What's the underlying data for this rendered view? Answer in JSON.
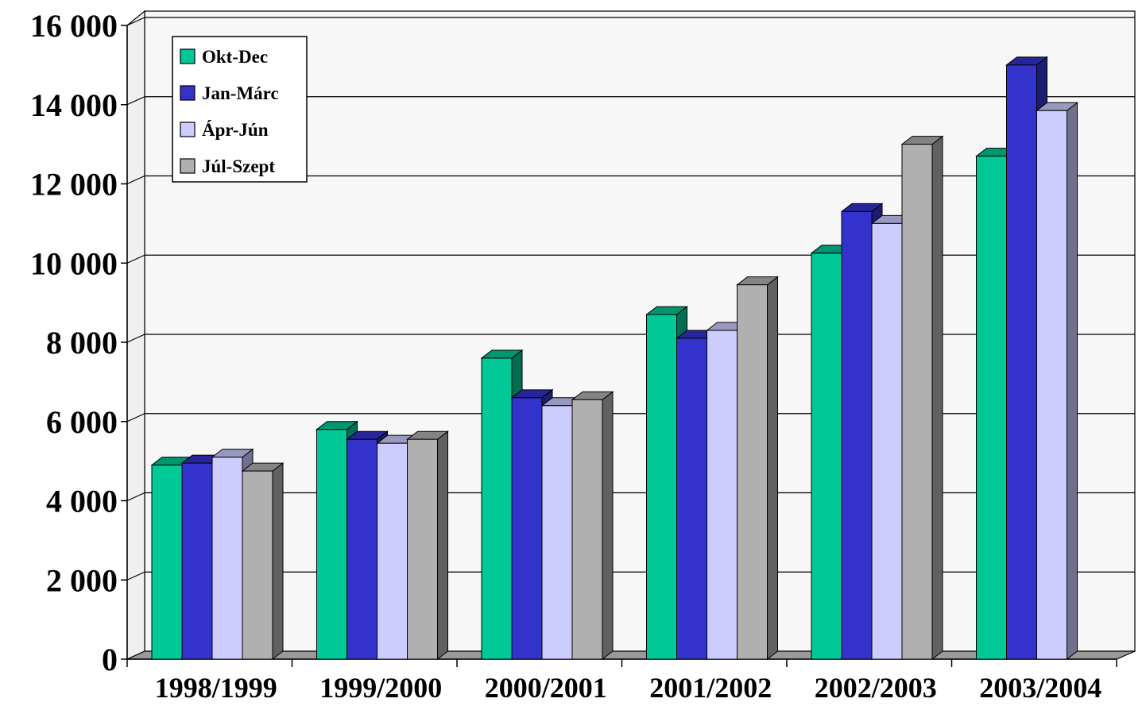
{
  "chart_data": {
    "type": "bar",
    "style": "3d-clustered",
    "categories": [
      "1998/1999",
      "1999/2000",
      "2000/2001",
      "2001/2002",
      "2002/2003",
      "2003/2004"
    ],
    "series": [
      {
        "name": "Okt-Dec",
        "color": "#00c896",
        "values": [
          4900,
          5800,
          7600,
          8700,
          10250,
          12700
        ]
      },
      {
        "name": "Jan-Márc",
        "color": "#3333cc",
        "values": [
          4950,
          5550,
          6600,
          8100,
          11300,
          15000
        ]
      },
      {
        "name": "Ápr-Jún",
        "color": "#ccccff",
        "values": [
          5100,
          5450,
          6400,
          8300,
          11000,
          13850
        ]
      },
      {
        "name": "Júl-Szept",
        "color": "#b0b0b0",
        "values": [
          4750,
          5550,
          6550,
          9450,
          13000,
          null
        ]
      }
    ],
    "yticks": [
      "0",
      "2 000",
      "4 000",
      "6 000",
      "8 000",
      "10 000",
      "12 000",
      "14 000",
      "16 000"
    ],
    "ylim": [
      0,
      16000
    ],
    "grid": true,
    "legend_position": "top-left"
  }
}
